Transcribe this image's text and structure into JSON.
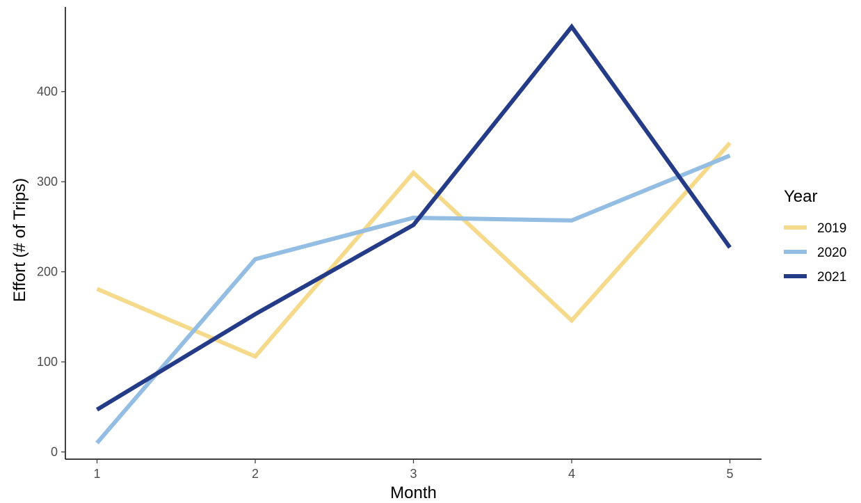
{
  "chart_data": {
    "type": "line",
    "title": "",
    "xlabel": "Month",
    "ylabel": "Effort (# of Trips)",
    "x": [
      1,
      2,
      3,
      4,
      5
    ],
    "xticks": [
      "1",
      "2",
      "3",
      "4",
      "5"
    ],
    "xlim": [
      0.8,
      5.2
    ],
    "ylim": [
      -8,
      494
    ],
    "yticks": [
      0,
      100,
      200,
      300,
      400
    ],
    "grid": false,
    "legend": {
      "title": "Year",
      "position": "right"
    },
    "series": [
      {
        "name": "2019",
        "color": "#F5DA8C",
        "values": [
          181,
          106,
          310,
          146,
          343
        ]
      },
      {
        "name": "2020",
        "color": "#93BDE3",
        "values": [
          10,
          214,
          260,
          257,
          329
        ]
      },
      {
        "name": "2021",
        "color": "#243B87",
        "values": [
          47,
          153,
          252,
          472,
          227
        ]
      }
    ]
  }
}
